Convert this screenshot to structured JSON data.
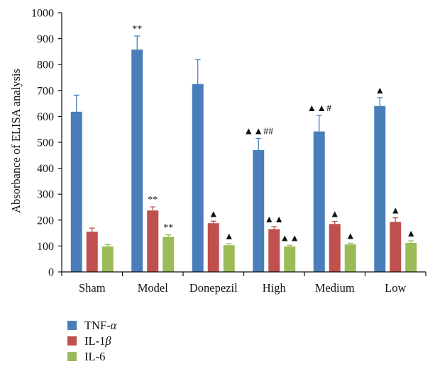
{
  "chart_data": {
    "type": "bar",
    "title": "",
    "xlabel": "",
    "ylabel": "Absorbance of ELISA analysis",
    "ylim": [
      0,
      1000
    ],
    "yticks": [
      0,
      100,
      200,
      300,
      400,
      500,
      600,
      700,
      800,
      900,
      1000
    ],
    "categories": [
      "Sham",
      "Model",
      "Donepezil",
      "High",
      "Medium",
      "Low"
    ],
    "grid": false,
    "legend_position": "bottom-left",
    "series": [
      {
        "name": "TNF-α",
        "name_base": "TNF-",
        "name_greek": "α",
        "color": "#4a7ebb",
        "values": [
          618,
          858,
          725,
          470,
          542,
          640
        ],
        "errors": [
          64,
          52,
          95,
          45,
          62,
          32
        ],
        "annotations": [
          "",
          "**",
          "",
          "▲▲##",
          "▲▲#",
          "▲"
        ]
      },
      {
        "name": "IL-1β",
        "name_base": "IL-1",
        "name_greek": "β",
        "color": "#c0504d",
        "values": [
          155,
          237,
          188,
          165,
          185,
          193
        ],
        "errors": [
          14,
          14,
          8,
          10,
          10,
          16
        ],
        "annotations": [
          "",
          "**",
          "▲",
          "▲▲",
          "▲",
          "▲"
        ]
      },
      {
        "name": "IL-6",
        "name_base": "IL-6",
        "name_greek": "",
        "color": "#9bbb59",
        "values": [
          98,
          135,
          103,
          98,
          106,
          112
        ],
        "errors": [
          8,
          8,
          6,
          5,
          5,
          8
        ],
        "annotations": [
          "",
          "**",
          "▲",
          "▲▲",
          "▲",
          "▲"
        ]
      }
    ]
  }
}
